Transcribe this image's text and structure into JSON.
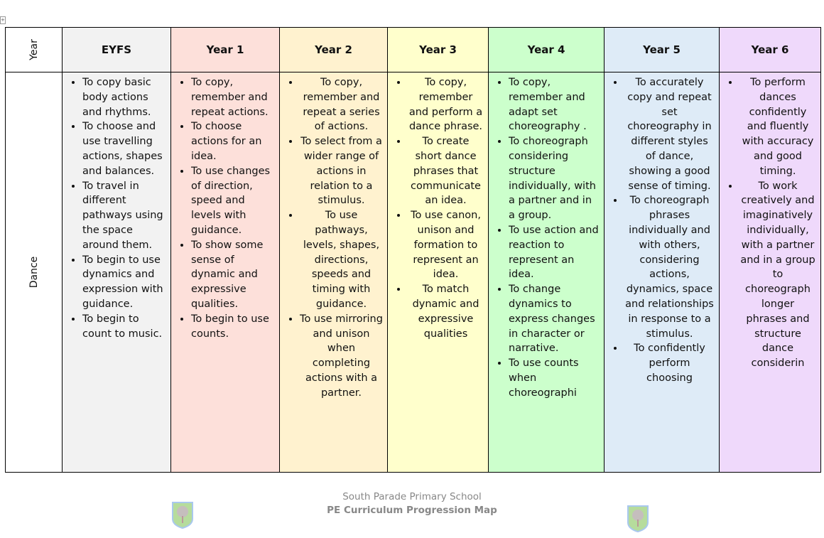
{
  "table": {
    "corner_label": "Year",
    "row_label": "Dance",
    "columns": [
      {
        "heading": "EYFS",
        "color": "#f2f2f2",
        "items": [
          "To copy basic body actions and rhythms.",
          "To choose and use travelling actions, shapes and balances.",
          "To travel in different pathways using the space around them.",
          "To begin to use dynamics and expression with guidance.",
          "To begin to count to music."
        ]
      },
      {
        "heading": "Year 1",
        "color": "#fde0da",
        "items": [
          "To copy, remember and repeat actions.",
          "To choose actions for an idea.",
          "To use changes of direction, speed and levels with guidance.",
          "To show some sense of dynamic and expressive qualities.",
          "To begin to use counts."
        ]
      },
      {
        "heading": "Year 2",
        "color": "#fff2cf",
        "items": [
          "To copy, remember and repeat a series of actions.",
          "To select from a wider range of actions in relation to a stimulus.",
          "To use pathways, levels, shapes, directions, speeds and timing with guidance.",
          "To use mirroring and unison when completing actions with a partner."
        ]
      },
      {
        "heading": "Year 3",
        "color": "#ffffcc",
        "items": [
          "To copy, remember and perform a dance phrase.",
          "To create short dance phrases that communicate an idea.",
          "To use canon, unison and formation to represent an idea.",
          "To match dynamic and expressive qualities"
        ]
      },
      {
        "heading": "Year 4",
        "color": "#ccffcc",
        "items": [
          "To copy, remember and adapt set choreography .",
          "To choreograph considering structure individually, with a partner and in a group.",
          "To use action and reaction to represent an idea.",
          "To change dynamics to express changes in character or narrative.",
          "To use counts when choreographi"
        ]
      },
      {
        "heading": "Year 5",
        "color": "#deebf7",
        "items": [
          "To accurately copy and repeat set choreography in different styles of dance, showing a good sense of timing.",
          "To choreograph phrases individually and with others, considering actions, dynamics, space and relationships in response to a stimulus.",
          "To confidently perform choosing"
        ]
      },
      {
        "heading": "Year 6",
        "color": "#efd9fb",
        "items": [
          "To perform dances confidently and fluently with accuracy and good timing.",
          "To work creatively and imaginatively individually, with a partner and in a group to choreograph longer phrases and structure dance considerin"
        ]
      }
    ]
  },
  "footer": {
    "school": "South Parade Primary School",
    "title": "PE Curriculum Progression Map"
  }
}
